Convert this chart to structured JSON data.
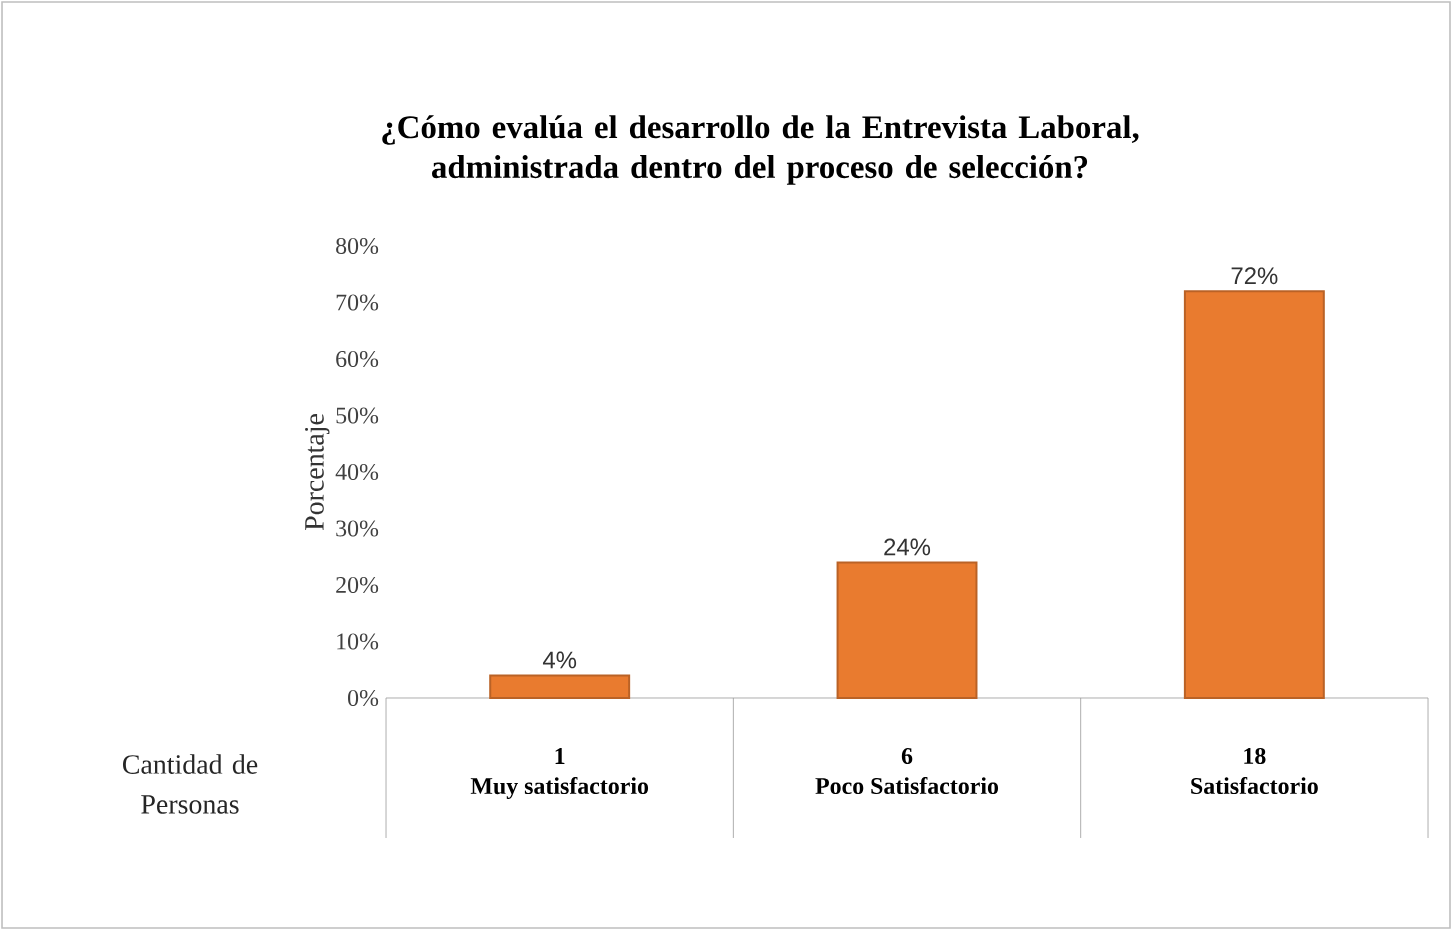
{
  "chart_data": {
    "type": "bar",
    "title": "¿Cómo evalúa el desarrollo de la Entrevista Laboral, administrada dentro del proceso de selección?",
    "ylabel": "Porcentaje",
    "categories": [
      "Muy satisfactorio",
      "Poco Satisfactorio",
      "Satisfactorio"
    ],
    "values": [
      4,
      24,
      72
    ],
    "value_labels": [
      "4%",
      "24%",
      "72%"
    ],
    "color": "#e97b2f",
    "ylim": [
      0,
      80
    ],
    "yticks": [
      {
        "value": 0,
        "label": "0%"
      },
      {
        "value": 10,
        "label": "10%"
      },
      {
        "value": 20,
        "label": "20%"
      },
      {
        "value": 30,
        "label": "30%"
      },
      {
        "value": 40,
        "label": "40%"
      },
      {
        "value": 50,
        "label": "50%"
      },
      {
        "value": 60,
        "label": "60%"
      },
      {
        "value": 70,
        "label": "70%"
      },
      {
        "value": 80,
        "label": "80%"
      }
    ],
    "annotations": [
      "Cantidad de Personas",
      "1",
      "6",
      "18"
    ]
  }
}
